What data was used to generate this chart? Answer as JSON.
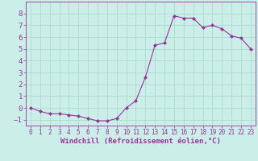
{
  "x": [
    0,
    1,
    2,
    3,
    4,
    5,
    6,
    7,
    8,
    9,
    10,
    11,
    12,
    13,
    14,
    15,
    16,
    17,
    18,
    19,
    20,
    21,
    22,
    23
  ],
  "y": [
    0.0,
    -0.3,
    -0.5,
    -0.5,
    -0.6,
    -0.7,
    -0.9,
    -1.1,
    -1.1,
    -0.9,
    0.0,
    0.6,
    2.6,
    5.3,
    5.5,
    7.8,
    7.6,
    7.6,
    6.8,
    7.0,
    6.7,
    6.1,
    5.9,
    5.0
  ],
  "xlabel": "Windchill (Refroidissement éolien,°C)",
  "xlim": [
    -0.5,
    23.5
  ],
  "ylim": [
    -1.5,
    9.0
  ],
  "yticks": [
    -1,
    0,
    1,
    2,
    3,
    4,
    5,
    6,
    7,
    8
  ],
  "xticks": [
    0,
    1,
    2,
    3,
    4,
    5,
    6,
    7,
    8,
    9,
    10,
    11,
    12,
    13,
    14,
    15,
    16,
    17,
    18,
    19,
    20,
    21,
    22,
    23
  ],
  "line_color": "#993399",
  "marker": "D",
  "marker_size": 2.0,
  "linewidth": 0.8,
  "bg_color": "#cceee8",
  "grid_color": "#aaddcc",
  "font_color": "#993399",
  "xlabel_fontsize": 6.5,
  "tick_fontsize_x": 5.5,
  "tick_fontsize_y": 6.5
}
